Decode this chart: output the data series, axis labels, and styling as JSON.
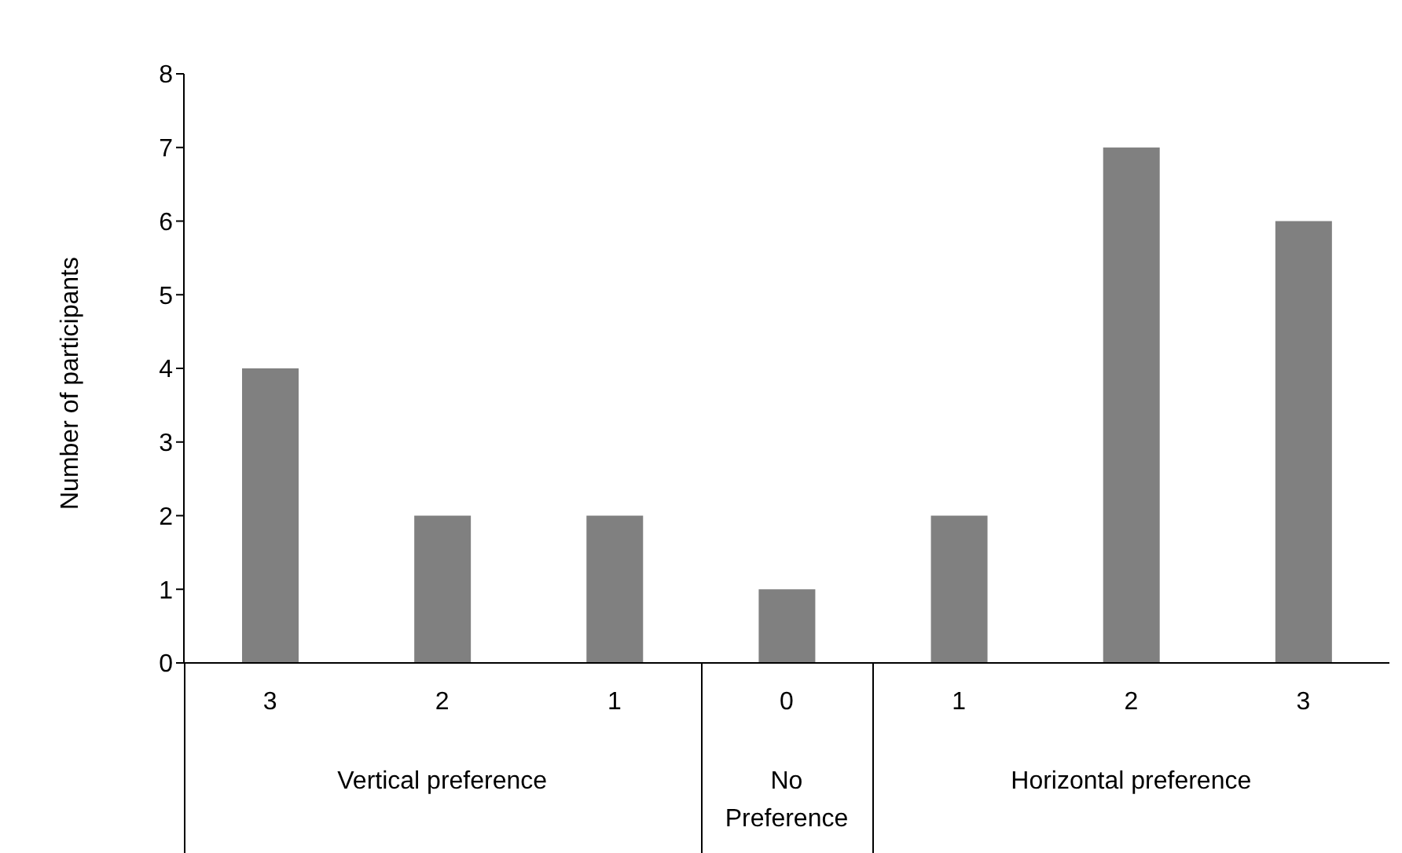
{
  "chart_data": {
    "type": "bar",
    "ylabel": "Number of participants",
    "categories": [
      "3",
      "2",
      "1",
      "0",
      "1",
      "2",
      "3"
    ],
    "values": [
      4,
      2,
      2,
      1,
      2,
      7,
      6
    ],
    "color": "#808080",
    "ylim": [
      0,
      8
    ],
    "yticks": [
      0,
      1,
      2,
      3,
      4,
      5,
      6,
      7,
      8
    ],
    "grid": false,
    "legend": false,
    "annotations": [
      "Vertical preference",
      "No Preference",
      "Horizontal preference"
    ]
  }
}
